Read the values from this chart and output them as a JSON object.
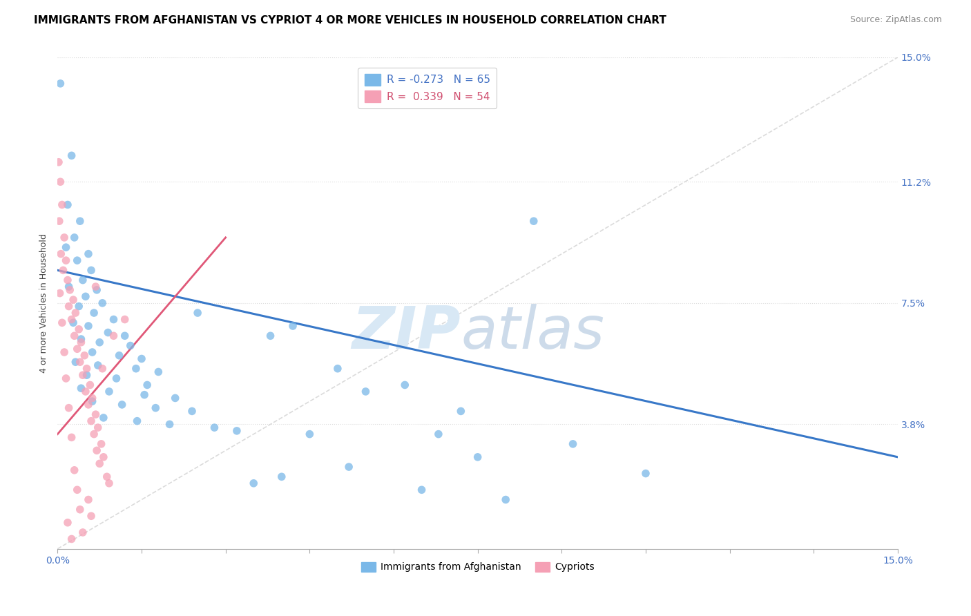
{
  "title": "IMMIGRANTS FROM AFGHANISTAN VS CYPRIOT 4 OR MORE VEHICLES IN HOUSEHOLD CORRELATION CHART",
  "source": "Source: ZipAtlas.com",
  "ylabel": "4 or more Vehicles in Household",
  "xmin": 0.0,
  "xmax": 15.0,
  "ymin": 0.0,
  "ymax": 15.0,
  "ytick_values": [
    3.8,
    7.5,
    11.2,
    15.0
  ],
  "ytick_labels": [
    "3.8%",
    "7.5%",
    "11.2%",
    "15.0%"
  ],
  "legend_blue_label": "R = -0.273   N = 65",
  "legend_pink_label": "R =  0.339   N = 54",
  "blue_scatter": [
    [
      0.05,
      14.2
    ],
    [
      0.25,
      12.0
    ],
    [
      0.18,
      10.5
    ],
    [
      0.4,
      10.0
    ],
    [
      0.3,
      9.5
    ],
    [
      0.15,
      9.2
    ],
    [
      0.55,
      9.0
    ],
    [
      0.35,
      8.8
    ],
    [
      0.6,
      8.5
    ],
    [
      0.45,
      8.2
    ],
    [
      0.2,
      8.0
    ],
    [
      0.7,
      7.9
    ],
    [
      0.5,
      7.7
    ],
    [
      0.8,
      7.5
    ],
    [
      0.38,
      7.4
    ],
    [
      0.65,
      7.2
    ],
    [
      1.0,
      7.0
    ],
    [
      0.28,
      6.9
    ],
    [
      0.55,
      6.8
    ],
    [
      0.9,
      6.6
    ],
    [
      1.2,
      6.5
    ],
    [
      0.42,
      6.4
    ],
    [
      0.75,
      6.3
    ],
    [
      1.3,
      6.2
    ],
    [
      0.62,
      6.0
    ],
    [
      1.1,
      5.9
    ],
    [
      1.5,
      5.8
    ],
    [
      0.32,
      5.7
    ],
    [
      0.72,
      5.6
    ],
    [
      1.4,
      5.5
    ],
    [
      1.8,
      5.4
    ],
    [
      0.52,
      5.3
    ],
    [
      1.05,
      5.2
    ],
    [
      1.6,
      5.0
    ],
    [
      0.42,
      4.9
    ],
    [
      0.92,
      4.8
    ],
    [
      1.55,
      4.7
    ],
    [
      2.1,
      4.6
    ],
    [
      0.62,
      4.5
    ],
    [
      1.15,
      4.4
    ],
    [
      1.75,
      4.3
    ],
    [
      2.4,
      4.2
    ],
    [
      0.82,
      4.0
    ],
    [
      1.42,
      3.9
    ],
    [
      2.0,
      3.8
    ],
    [
      2.8,
      3.7
    ],
    [
      3.2,
      3.6
    ],
    [
      4.5,
      3.5
    ],
    [
      5.0,
      5.5
    ],
    [
      6.2,
      5.0
    ],
    [
      3.8,
      6.5
    ],
    [
      4.2,
      6.8
    ],
    [
      2.5,
      7.2
    ],
    [
      5.5,
      4.8
    ],
    [
      7.2,
      4.2
    ],
    [
      8.5,
      10.0
    ],
    [
      6.8,
      3.5
    ],
    [
      9.2,
      3.2
    ],
    [
      7.5,
      2.8
    ],
    [
      5.2,
      2.5
    ],
    [
      10.5,
      2.3
    ],
    [
      4.0,
      2.2
    ],
    [
      3.5,
      2.0
    ],
    [
      6.5,
      1.8
    ],
    [
      8.0,
      1.5
    ]
  ],
  "pink_scatter": [
    [
      0.02,
      11.8
    ],
    [
      0.05,
      11.2
    ],
    [
      0.08,
      10.5
    ],
    [
      0.03,
      10.0
    ],
    [
      0.12,
      9.5
    ],
    [
      0.06,
      9.0
    ],
    [
      0.15,
      8.8
    ],
    [
      0.1,
      8.5
    ],
    [
      0.18,
      8.2
    ],
    [
      0.22,
      7.9
    ],
    [
      0.04,
      7.8
    ],
    [
      0.28,
      7.6
    ],
    [
      0.2,
      7.4
    ],
    [
      0.32,
      7.2
    ],
    [
      0.25,
      7.0
    ],
    [
      0.08,
      6.9
    ],
    [
      0.38,
      6.7
    ],
    [
      0.3,
      6.5
    ],
    [
      0.42,
      6.3
    ],
    [
      0.35,
      6.1
    ],
    [
      0.12,
      6.0
    ],
    [
      0.48,
      5.9
    ],
    [
      0.4,
      5.7
    ],
    [
      0.52,
      5.5
    ],
    [
      0.45,
      5.3
    ],
    [
      0.15,
      5.2
    ],
    [
      0.58,
      5.0
    ],
    [
      0.5,
      4.8
    ],
    [
      0.62,
      4.6
    ],
    [
      0.55,
      4.4
    ],
    [
      0.2,
      4.3
    ],
    [
      0.68,
      4.1
    ],
    [
      0.6,
      3.9
    ],
    [
      0.72,
      3.7
    ],
    [
      0.65,
      3.5
    ],
    [
      0.25,
      3.4
    ],
    [
      0.78,
      3.2
    ],
    [
      0.7,
      3.0
    ],
    [
      0.82,
      2.8
    ],
    [
      0.75,
      2.6
    ],
    [
      0.3,
      2.4
    ],
    [
      0.88,
      2.2
    ],
    [
      0.92,
      2.0
    ],
    [
      0.35,
      1.8
    ],
    [
      0.55,
      1.5
    ],
    [
      0.4,
      1.2
    ],
    [
      0.6,
      1.0
    ],
    [
      0.18,
      0.8
    ],
    [
      0.45,
      0.5
    ],
    [
      0.25,
      0.3
    ],
    [
      1.0,
      6.5
    ],
    [
      1.2,
      7.0
    ],
    [
      0.8,
      5.5
    ],
    [
      0.68,
      8.0
    ]
  ],
  "blue_line": [
    [
      0.0,
      8.5
    ],
    [
      15.0,
      2.8
    ]
  ],
  "pink_line": [
    [
      0.0,
      3.5
    ],
    [
      3.0,
      9.5
    ]
  ],
  "diagonal_line": [
    [
      0.0,
      0.0
    ],
    [
      15.0,
      15.0
    ]
  ],
  "watermark_zip": "ZIP",
  "watermark_atlas": "atlas",
  "watermark_color": "#d8e8f5",
  "blue_color": "#7ab8e8",
  "pink_color": "#f5a0b5",
  "blue_line_color": "#3878c8",
  "pink_line_color": "#e05878",
  "diagonal_line_color": "#cccccc",
  "title_fontsize": 11,
  "axis_label_fontsize": 9,
  "tick_fontsize": 10,
  "source_fontsize": 9
}
